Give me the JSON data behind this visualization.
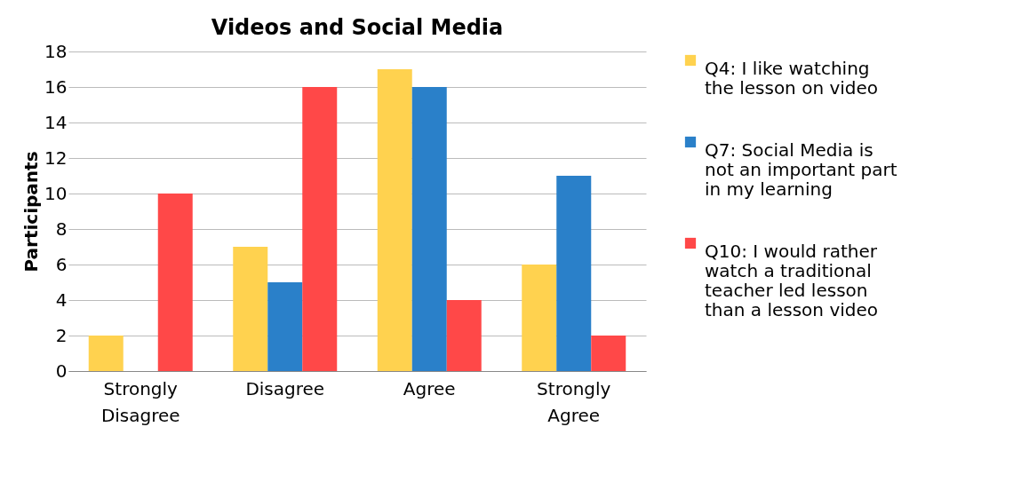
{
  "chart_data": {
    "type": "bar",
    "title": "Videos and Social Media",
    "ylabel": "Participants",
    "categories": [
      "Strongly Disagree",
      "Disagree",
      "Agree",
      "Strongly Agree"
    ],
    "series": [
      {
        "name": "Q4: I like watching the lesson on video",
        "color": "#ffd24f",
        "values": [
          2,
          7,
          17,
          6
        ]
      },
      {
        "name": "Q7: Social Media is not an important part in my learning",
        "color": "#2a80c9",
        "values": [
          0,
          5,
          16,
          11
        ]
      },
      {
        "name": "Q10: I would rather watch a traditional teacher led lesson than a lesson video",
        "color": "#ff4848",
        "values": [
          10,
          16,
          4,
          2
        ]
      }
    ],
    "ylim": [
      0,
      18
    ],
    "yticks": [
      0,
      2,
      4,
      6,
      8,
      10,
      12,
      14,
      16,
      18
    ],
    "grid": "y",
    "legend": "right"
  }
}
